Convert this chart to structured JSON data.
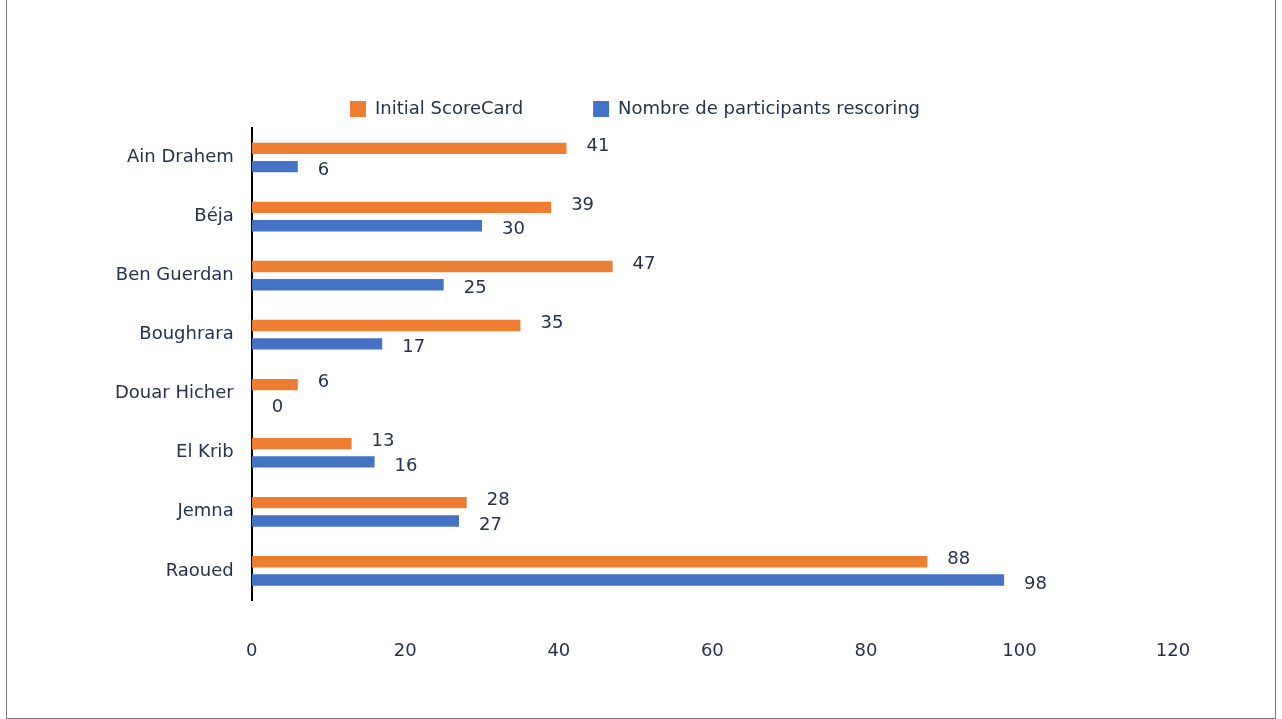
{
  "chart_data": {
    "type": "bar",
    "orientation": "horizontal",
    "categories": [
      "Ain Drahem",
      "Béja",
      "Ben Guerdan",
      "Boughrara",
      "Douar Hicher",
      "El Krib",
      "Jemna",
      "Raoued"
    ],
    "series": [
      {
        "name": "Initial ScoreCard",
        "color": "#ed7d31",
        "values": [
          41,
          39,
          47,
          35,
          6,
          13,
          28,
          88
        ]
      },
      {
        "name": "Nombre de participants rescoring",
        "color": "#4472c4",
        "values": [
          6,
          30,
          25,
          17,
          0,
          16,
          27,
          98
        ]
      }
    ],
    "xlim": [
      0,
      120
    ],
    "xticks": [
      0,
      20,
      40,
      60,
      80,
      100,
      120
    ],
    "grid": false,
    "legend": "top",
    "data_labels": true
  }
}
